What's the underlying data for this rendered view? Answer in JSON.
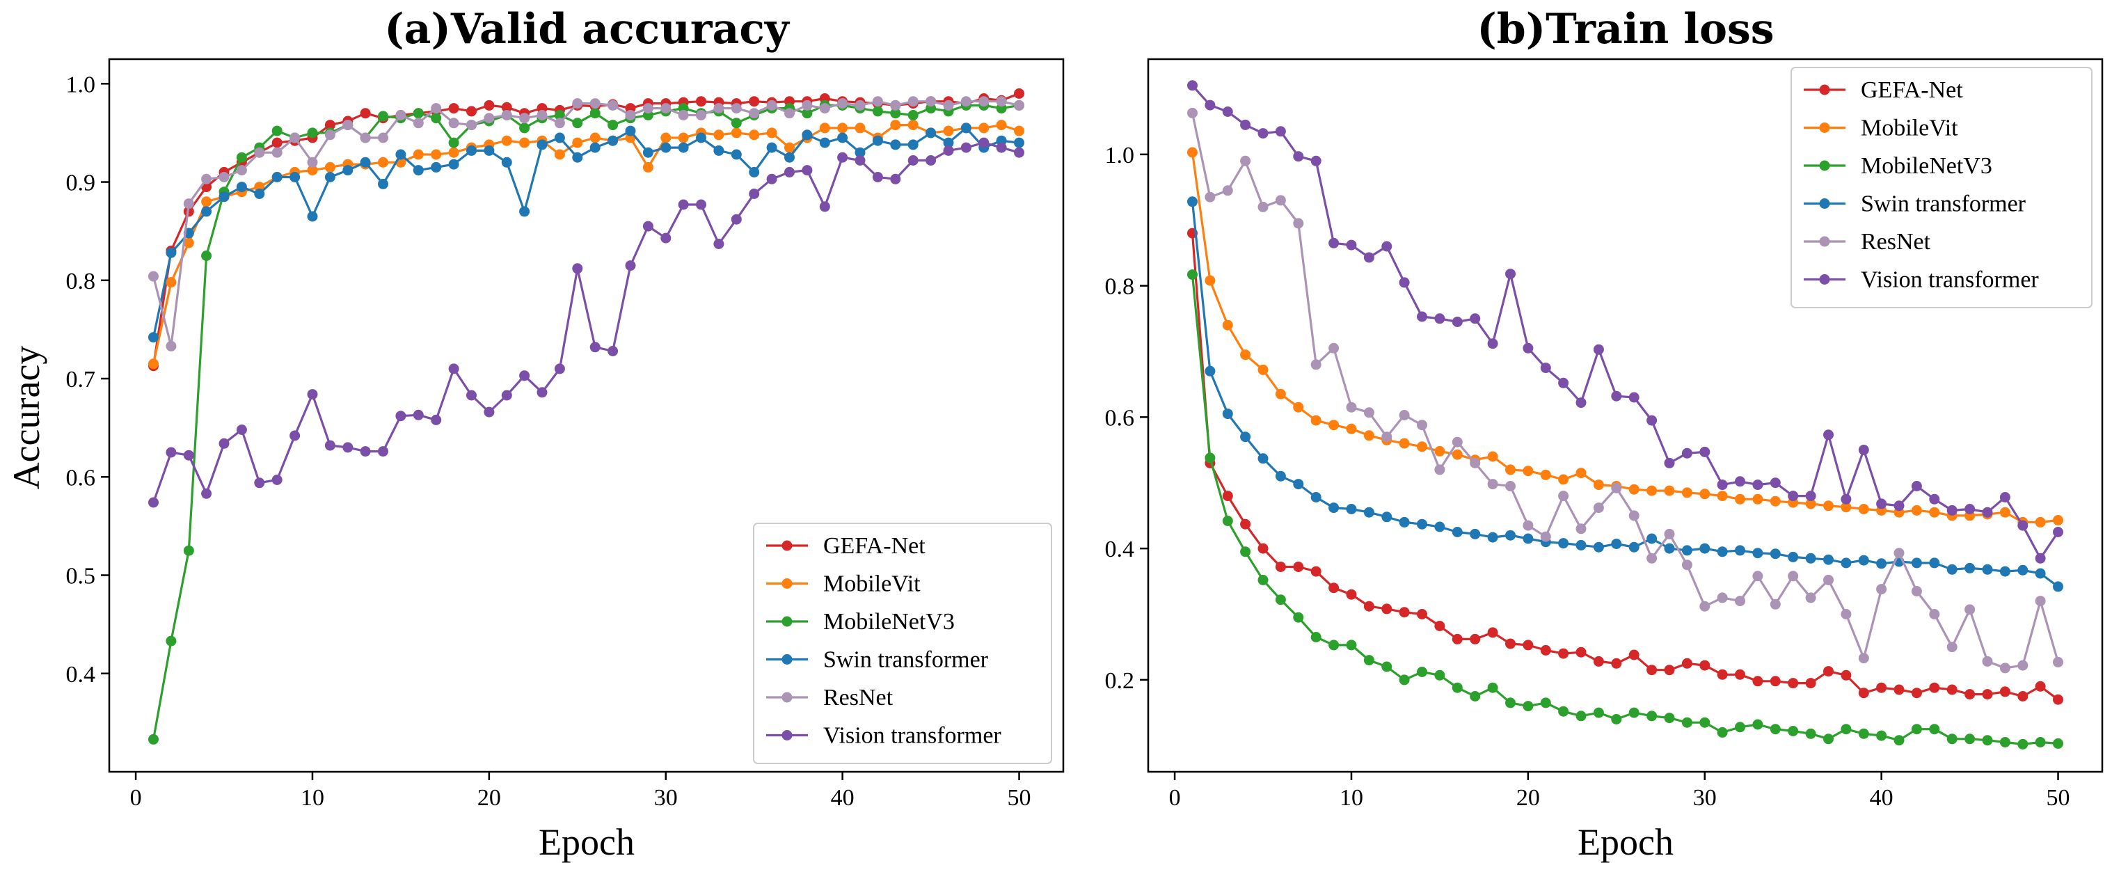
{
  "colors": {
    "GEFA-Net": "#d62728",
    "MobileVit": "#ff7f0e",
    "MobileNetV3": "#2ca02c",
    "Swin transformer": "#1f77b4",
    "ResNet": "#aa93b5",
    "Vision transformer": "#7b4ea8"
  },
  "chart_data": [
    {
      "type": "line",
      "title": "(a)Valid accuracy",
      "xlabel": "Epoch",
      "ylabel": "Accuracy",
      "xlim": [
        -1.5,
        52.5
      ],
      "ylim": [
        0.3,
        1.025
      ],
      "xticks": [
        0,
        10,
        20,
        30,
        40,
        50
      ],
      "yticks": [
        0.4,
        0.5,
        0.6,
        0.7,
        0.8,
        0.9,
        1.0
      ],
      "grid": false,
      "legend": "lower-right",
      "x": [
        1,
        2,
        3,
        4,
        5,
        6,
        7,
        8,
        9,
        10,
        11,
        12,
        13,
        14,
        15,
        16,
        17,
        18,
        19,
        20,
        21,
        22,
        23,
        24,
        25,
        26,
        27,
        28,
        29,
        30,
        31,
        32,
        33,
        34,
        35,
        36,
        37,
        38,
        39,
        40,
        41,
        42,
        43,
        44,
        45,
        46,
        47,
        48,
        49,
        50
      ],
      "series": [
        {
          "name": "GEFA-Net",
          "values": [
            0.713,
            0.83,
            0.87,
            0.895,
            0.91,
            0.92,
            0.93,
            0.94,
            0.942,
            0.945,
            0.958,
            0.962,
            0.97,
            0.965,
            0.968,
            0.97,
            0.972,
            0.975,
            0.972,
            0.978,
            0.976,
            0.97,
            0.975,
            0.973,
            0.978,
            0.977,
            0.979,
            0.975,
            0.98,
            0.98,
            0.981,
            0.982,
            0.981,
            0.98,
            0.982,
            0.981,
            0.982,
            0.982,
            0.985,
            0.982,
            0.981,
            0.98,
            0.978,
            0.98,
            0.982,
            0.982,
            0.98,
            0.985,
            0.983,
            0.99
          ]
        },
        {
          "name": "MobileVit",
          "values": [
            0.715,
            0.798,
            0.838,
            0.88,
            0.885,
            0.89,
            0.895,
            0.905,
            0.91,
            0.912,
            0.915,
            0.918,
            0.918,
            0.92,
            0.92,
            0.928,
            0.928,
            0.93,
            0.935,
            0.938,
            0.942,
            0.94,
            0.942,
            0.928,
            0.94,
            0.945,
            0.942,
            0.945,
            0.915,
            0.945,
            0.945,
            0.95,
            0.948,
            0.95,
            0.948,
            0.95,
            0.935,
            0.945,
            0.955,
            0.955,
            0.955,
            0.945,
            0.958,
            0.958,
            0.95,
            0.952,
            0.955,
            0.955,
            0.958,
            0.952
          ]
        },
        {
          "name": "MobileNetV3",
          "values": [
            0.333,
            0.433,
            0.525,
            0.825,
            0.89,
            0.925,
            0.935,
            0.952,
            0.945,
            0.95,
            0.95,
            0.958,
            0.945,
            0.967,
            0.965,
            0.97,
            0.965,
            0.94,
            0.958,
            0.962,
            0.968,
            0.955,
            0.965,
            0.968,
            0.96,
            0.97,
            0.958,
            0.965,
            0.968,
            0.972,
            0.975,
            0.97,
            0.972,
            0.96,
            0.968,
            0.975,
            0.975,
            0.97,
            0.978,
            0.978,
            0.975,
            0.972,
            0.97,
            0.968,
            0.975,
            0.972,
            0.978,
            0.978,
            0.975,
            0.978
          ]
        },
        {
          "name": "Swin transformer",
          "values": [
            0.742,
            0.828,
            0.848,
            0.87,
            0.885,
            0.895,
            0.888,
            0.905,
            0.905,
            0.865,
            0.905,
            0.912,
            0.92,
            0.898,
            0.928,
            0.912,
            0.915,
            0.918,
            0.932,
            0.932,
            0.92,
            0.87,
            0.938,
            0.945,
            0.925,
            0.935,
            0.942,
            0.952,
            0.93,
            0.935,
            0.935,
            0.945,
            0.932,
            0.928,
            0.91,
            0.935,
            0.925,
            0.948,
            0.94,
            0.945,
            0.93,
            0.942,
            0.938,
            0.938,
            0.95,
            0.94,
            0.955,
            0.935,
            0.942,
            0.94
          ]
        },
        {
          "name": "ResNet",
          "values": [
            0.804,
            0.733,
            0.878,
            0.903,
            0.905,
            0.912,
            0.93,
            0.93,
            0.945,
            0.92,
            0.948,
            0.958,
            0.945,
            0.945,
            0.968,
            0.96,
            0.975,
            0.96,
            0.958,
            0.965,
            0.968,
            0.965,
            0.968,
            0.96,
            0.98,
            0.98,
            0.978,
            0.968,
            0.975,
            0.975,
            0.968,
            0.968,
            0.975,
            0.975,
            0.97,
            0.978,
            0.97,
            0.978,
            0.975,
            0.98,
            0.978,
            0.982,
            0.978,
            0.982,
            0.982,
            0.978,
            0.982,
            0.982,
            0.982,
            0.978
          ]
        },
        {
          "name": "Vision transformer",
          "values": [
            0.574,
            0.625,
            0.622,
            0.583,
            0.634,
            0.648,
            0.594,
            0.597,
            0.642,
            0.684,
            0.632,
            0.63,
            0.626,
            0.626,
            0.662,
            0.663,
            0.658,
            0.71,
            0.683,
            0.666,
            0.683,
            0.703,
            0.686,
            0.71,
            0.812,
            0.732,
            0.728,
            0.815,
            0.855,
            0.843,
            0.877,
            0.877,
            0.837,
            0.862,
            0.888,
            0.903,
            0.91,
            0.912,
            0.875,
            0.925,
            0.922,
            0.905,
            0.903,
            0.922,
            0.922,
            0.932,
            0.935,
            0.94,
            0.935,
            0.93
          ]
        }
      ]
    },
    {
      "type": "line",
      "title": "(b)Train loss",
      "xlabel": "Epoch",
      "ylabel": "",
      "xlim": [
        -1.5,
        52.5
      ],
      "ylim": [
        0.06,
        1.145
      ],
      "xticks": [
        0,
        10,
        20,
        30,
        40,
        50
      ],
      "yticks": [
        0.2,
        0.4,
        0.6,
        0.8,
        1.0
      ],
      "grid": false,
      "legend": "upper-right",
      "x": [
        1,
        2,
        3,
        4,
        5,
        6,
        7,
        8,
        9,
        10,
        11,
        12,
        13,
        14,
        15,
        16,
        17,
        18,
        19,
        20,
        21,
        22,
        23,
        24,
        25,
        26,
        27,
        28,
        29,
        30,
        31,
        32,
        33,
        34,
        35,
        36,
        37,
        38,
        39,
        40,
        41,
        42,
        43,
        44,
        45,
        46,
        47,
        48,
        49,
        50
      ],
      "series": [
        {
          "name": "GEFA-Net",
          "values": [
            0.88,
            0.53,
            0.48,
            0.437,
            0.4,
            0.372,
            0.372,
            0.365,
            0.34,
            0.33,
            0.312,
            0.308,
            0.303,
            0.3,
            0.282,
            0.262,
            0.262,
            0.272,
            0.255,
            0.253,
            0.245,
            0.24,
            0.242,
            0.228,
            0.225,
            0.238,
            0.215,
            0.215,
            0.225,
            0.222,
            0.208,
            0.208,
            0.198,
            0.198,
            0.195,
            0.195,
            0.213,
            0.207,
            0.18,
            0.188,
            0.185,
            0.18,
            0.188,
            0.185,
            0.178,
            0.178,
            0.182,
            0.175,
            0.19,
            0.17
          ]
        },
        {
          "name": "MobileVit",
          "values": [
            1.003,
            0.808,
            0.74,
            0.695,
            0.672,
            0.635,
            0.615,
            0.595,
            0.588,
            0.582,
            0.572,
            0.565,
            0.56,
            0.555,
            0.548,
            0.543,
            0.535,
            0.54,
            0.52,
            0.518,
            0.512,
            0.505,
            0.515,
            0.497,
            0.495,
            0.49,
            0.488,
            0.488,
            0.485,
            0.483,
            0.48,
            0.475,
            0.475,
            0.472,
            0.47,
            0.468,
            0.465,
            0.463,
            0.46,
            0.458,
            0.455,
            0.458,
            0.455,
            0.45,
            0.45,
            0.452,
            0.455,
            0.44,
            0.44,
            0.443
          ]
        },
        {
          "name": "MobileNetV3",
          "values": [
            0.817,
            0.538,
            0.442,
            0.395,
            0.352,
            0.322,
            0.295,
            0.265,
            0.253,
            0.253,
            0.23,
            0.22,
            0.2,
            0.212,
            0.207,
            0.188,
            0.175,
            0.188,
            0.165,
            0.16,
            0.165,
            0.152,
            0.145,
            0.15,
            0.14,
            0.15,
            0.145,
            0.142,
            0.135,
            0.135,
            0.12,
            0.128,
            0.132,
            0.125,
            0.122,
            0.118,
            0.11,
            0.125,
            0.118,
            0.115,
            0.108,
            0.125,
            0.125,
            0.11,
            0.11,
            0.108,
            0.105,
            0.102,
            0.105,
            0.103
          ]
        },
        {
          "name": "Swin transformer",
          "values": [
            0.928,
            0.67,
            0.605,
            0.57,
            0.537,
            0.51,
            0.498,
            0.478,
            0.462,
            0.46,
            0.455,
            0.448,
            0.44,
            0.437,
            0.433,
            0.425,
            0.422,
            0.417,
            0.42,
            0.415,
            0.41,
            0.408,
            0.405,
            0.402,
            0.407,
            0.402,
            0.415,
            0.4,
            0.397,
            0.4,
            0.395,
            0.397,
            0.393,
            0.392,
            0.387,
            0.385,
            0.383,
            0.378,
            0.382,
            0.377,
            0.38,
            0.378,
            0.378,
            0.368,
            0.37,
            0.368,
            0.365,
            0.367,
            0.362,
            0.342
          ]
        },
        {
          "name": "ResNet",
          "values": [
            1.063,
            0.935,
            0.945,
            0.99,
            0.92,
            0.93,
            0.895,
            0.68,
            0.705,
            0.615,
            0.607,
            0.57,
            0.603,
            0.588,
            0.52,
            0.562,
            0.53,
            0.498,
            0.495,
            0.435,
            0.418,
            0.48,
            0.43,
            0.462,
            0.492,
            0.45,
            0.385,
            0.422,
            0.375,
            0.312,
            0.325,
            0.32,
            0.358,
            0.315,
            0.358,
            0.325,
            0.352,
            0.3,
            0.233,
            0.338,
            0.393,
            0.335,
            0.3,
            0.25,
            0.307,
            0.228,
            0.218,
            0.222,
            0.32,
            0.227
          ]
        },
        {
          "name": "Vision transformer",
          "values": [
            1.105,
            1.075,
            1.065,
            1.045,
            1.032,
            1.035,
            0.997,
            0.99,
            0.865,
            0.862,
            0.843,
            0.86,
            0.805,
            0.753,
            0.75,
            0.745,
            0.75,
            0.712,
            0.818,
            0.705,
            0.675,
            0.652,
            0.622,
            0.703,
            0.632,
            0.63,
            0.595,
            0.53,
            0.545,
            0.547,
            0.497,
            0.502,
            0.497,
            0.5,
            0.48,
            0.48,
            0.573,
            0.475,
            0.55,
            0.468,
            0.465,
            0.495,
            0.475,
            0.458,
            0.46,
            0.455,
            0.478,
            0.435,
            0.385,
            0.425
          ]
        }
      ]
    }
  ]
}
